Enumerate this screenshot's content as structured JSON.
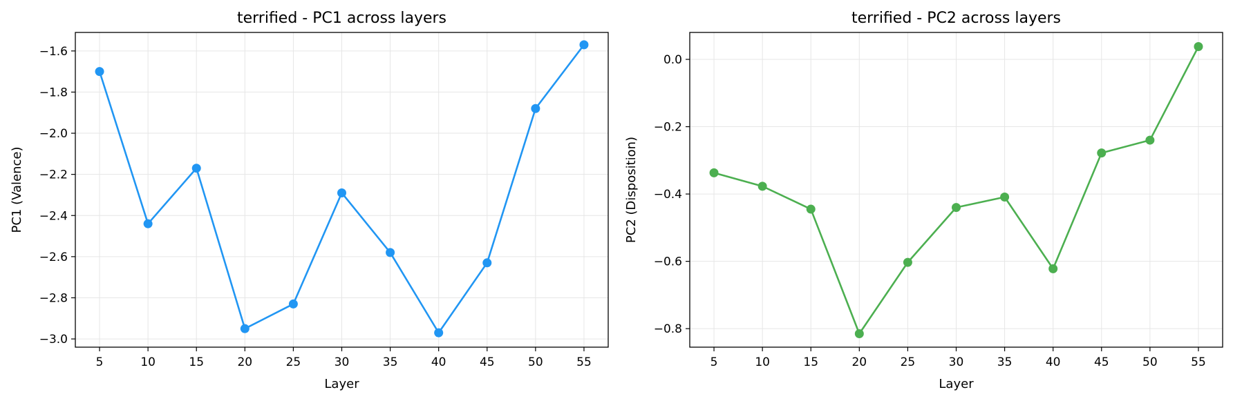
{
  "chart_data": [
    {
      "type": "line",
      "title": "terrified - PC1 across layers",
      "xlabel": "Layer",
      "ylabel": "PC1 (Valence)",
      "x": [
        5,
        10,
        15,
        20,
        25,
        30,
        35,
        40,
        45,
        50,
        55
      ],
      "xticks": [
        5,
        10,
        15,
        20,
        25,
        30,
        35,
        40,
        45,
        50,
        55
      ],
      "xlim": [
        2.5,
        57.5
      ],
      "yticks": [
        -3.0,
        -2.8,
        -2.6,
        -2.4,
        -2.2,
        -2.0,
        -1.8,
        -1.6
      ],
      "ytick_labels": [
        "−3.0",
        "−2.8",
        "−2.6",
        "−2.4",
        "−2.2",
        "−2.0",
        "−1.8",
        "−1.6"
      ],
      "ylim": [
        -3.04,
        -1.51
      ],
      "grid": true,
      "series": [
        {
          "color": "#2196F3",
          "values": [
            -1.7,
            -2.44,
            -2.17,
            -2.95,
            -2.83,
            -2.29,
            -2.58,
            -2.97,
            -2.63,
            -1.88,
            -1.57
          ]
        }
      ]
    },
    {
      "type": "line",
      "title": "terrified - PC2 across layers",
      "xlabel": "Layer",
      "ylabel": "PC2 (Disposition)",
      "x": [
        5,
        10,
        15,
        20,
        25,
        30,
        35,
        40,
        45,
        50,
        55
      ],
      "xticks": [
        5,
        10,
        15,
        20,
        25,
        30,
        35,
        40,
        45,
        50,
        55
      ],
      "xlim": [
        2.5,
        57.5
      ],
      "yticks": [
        -0.8,
        -0.6,
        -0.4,
        -0.2,
        0.0
      ],
      "ytick_labels": [
        "−0.8",
        "−0.6",
        "−0.4",
        "−0.2",
        "0.0"
      ],
      "ylim": [
        -0.855,
        0.08
      ],
      "grid": true,
      "series": [
        {
          "color": "#4CAF50",
          "values": [
            -0.337,
            -0.377,
            -0.445,
            -0.815,
            -0.603,
            -0.44,
            -0.409,
            -0.622,
            -0.278,
            -0.24,
            0.038
          ]
        }
      ]
    }
  ]
}
